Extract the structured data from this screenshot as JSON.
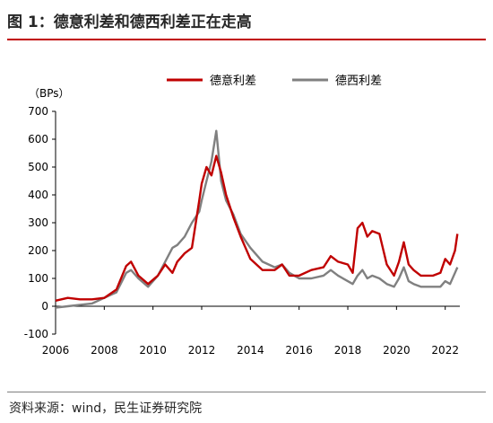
{
  "title": "图 1：德意利差和德西利差正在走高",
  "source": "资料来源：wind，民生证券研究院",
  "chart_data": {
    "type": "line",
    "unit_label": "（BPs）",
    "ylim": [
      -100,
      700
    ],
    "yticks": [
      "-100",
      "0",
      "100",
      "200",
      "300",
      "400",
      "500",
      "600",
      "700"
    ],
    "xlim": [
      2006,
      2022.6
    ],
    "xticks": [
      "2006",
      "2008",
      "2010",
      "2012",
      "2014",
      "2016",
      "2018",
      "2020",
      "2022"
    ],
    "legend_position": "top",
    "series": [
      {
        "name": "德意利差",
        "color": "#c00000",
        "x": [
          2006.0,
          2006.5,
          2007.0,
          2007.5,
          2008.0,
          2008.5,
          2008.9,
          2009.1,
          2009.4,
          2009.8,
          2010.2,
          2010.5,
          2010.8,
          2011.0,
          2011.3,
          2011.6,
          2011.9,
          2012.0,
          2012.2,
          2012.4,
          2012.6,
          2012.8,
          2013.0,
          2013.3,
          2013.6,
          2014.0,
          2014.5,
          2015.0,
          2015.3,
          2015.6,
          2016.0,
          2016.5,
          2017.0,
          2017.3,
          2017.6,
          2018.0,
          2018.2,
          2018.4,
          2018.6,
          2018.8,
          2019.0,
          2019.3,
          2019.6,
          2019.9,
          2020.1,
          2020.3,
          2020.5,
          2020.7,
          2021.0,
          2021.5,
          2021.8,
          2022.0,
          2022.2,
          2022.4,
          2022.5
        ],
        "y": [
          20,
          30,
          25,
          25,
          30,
          60,
          145,
          160,
          110,
          80,
          110,
          150,
          120,
          160,
          190,
          210,
          380,
          440,
          500,
          470,
          540,
          480,
          400,
          320,
          250,
          170,
          130,
          130,
          150,
          110,
          110,
          130,
          140,
          180,
          160,
          150,
          120,
          280,
          300,
          250,
          270,
          260,
          150,
          110,
          160,
          230,
          150,
          130,
          110,
          110,
          120,
          170,
          150,
          200,
          260
        ]
      },
      {
        "name": "德西利差",
        "color": "#808080",
        "x": [
          2006.0,
          2006.5,
          2007.0,
          2007.5,
          2008.0,
          2008.5,
          2008.9,
          2009.1,
          2009.4,
          2009.8,
          2010.2,
          2010.5,
          2010.8,
          2011.0,
          2011.3,
          2011.6,
          2011.9,
          2012.0,
          2012.2,
          2012.4,
          2012.6,
          2012.8,
          2013.0,
          2013.3,
          2013.6,
          2014.0,
          2014.5,
          2015.0,
          2015.3,
          2015.6,
          2016.0,
          2016.5,
          2017.0,
          2017.3,
          2017.6,
          2018.0,
          2018.2,
          2018.4,
          2018.6,
          2018.8,
          2019.0,
          2019.3,
          2019.6,
          2019.9,
          2020.1,
          2020.3,
          2020.5,
          2020.7,
          2021.0,
          2021.5,
          2021.8,
          2022.0,
          2022.2,
          2022.4,
          2022.5
        ],
        "y": [
          -5,
          0,
          5,
          10,
          30,
          50,
          120,
          130,
          100,
          70,
          110,
          160,
          210,
          220,
          250,
          300,
          340,
          380,
          450,
          520,
          630,
          450,
          380,
          330,
          260,
          210,
          160,
          140,
          150,
          120,
          100,
          100,
          110,
          130,
          110,
          90,
          80,
          110,
          130,
          100,
          110,
          100,
          80,
          70,
          100,
          140,
          90,
          80,
          70,
          70,
          70,
          90,
          80,
          120,
          140
        ]
      }
    ]
  }
}
